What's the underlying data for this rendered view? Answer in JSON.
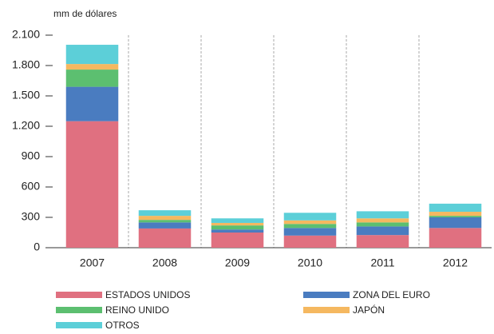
{
  "chart_data": {
    "type": "stacked_bar",
    "y_label": "mm de dólares",
    "categories": [
      "2007",
      "2008",
      "2009",
      "2010",
      "2011",
      "2012"
    ],
    "series": [
      {
        "name": "ESTADOS UNIDOS",
        "color": "#e07080",
        "values": [
          1250,
          190,
          150,
          120,
          125,
          195
        ]
      },
      {
        "name": "ZONA DEL EURO",
        "color": "#4a7cc0",
        "values": [
          340,
          60,
          30,
          75,
          85,
          105
        ]
      },
      {
        "name": "REINO UNIDO",
        "color": "#5cbf70",
        "values": [
          170,
          25,
          40,
          40,
          40,
          15
        ]
      },
      {
        "name": "JAPÓN",
        "color": "#f5b860",
        "values": [
          55,
          40,
          25,
          35,
          40,
          40
        ]
      },
      {
        "name": "OTROS",
        "color": "#5ccfd8",
        "values": [
          190,
          55,
          45,
          75,
          70,
          80
        ]
      }
    ],
    "ylim": [
      0,
      2100
    ],
    "yticks": [
      0,
      300,
      600,
      900,
      {
        "value": 1200,
        "label": "1.200"
      },
      {
        "value": 1500,
        "label": "1.500"
      },
      {
        "value": 1800,
        "label": "1.800"
      },
      {
        "value": 2100,
        "label": "2.100"
      }
    ]
  }
}
